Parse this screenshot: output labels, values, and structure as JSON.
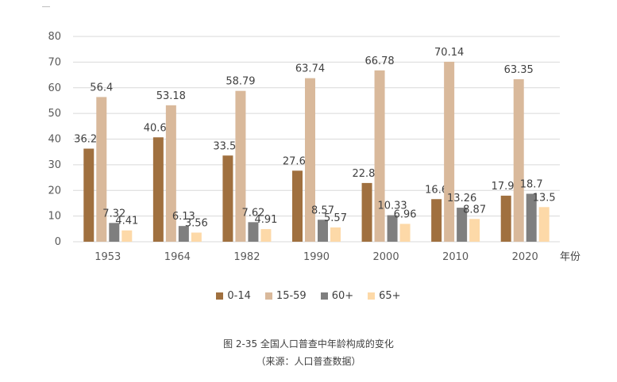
{
  "chart_data": {
    "type": "bar",
    "title": "",
    "xlabel": "年份",
    "ylabel": "",
    "ylim": [
      0,
      80
    ],
    "yticks": [
      0,
      10,
      20,
      30,
      40,
      50,
      60,
      70,
      80
    ],
    "categories": [
      "1953",
      "1964",
      "1982",
      "1990",
      "2000",
      "2010",
      "2020"
    ],
    "series": [
      {
        "name": "0-14",
        "color": "#a0703f",
        "values": [
          36.28,
          40.69,
          33.59,
          27.69,
          22.89,
          16.6,
          17.95
        ]
      },
      {
        "name": "15-59",
        "color": "#d9b99b",
        "values": [
          56.4,
          53.18,
          58.79,
          63.74,
          66.78,
          70.14,
          63.35
        ]
      },
      {
        "name": "60+",
        "color": "#7f7f7f",
        "values": [
          7.32,
          6.13,
          7.62,
          8.57,
          10.33,
          13.26,
          18.7
        ]
      },
      {
        "name": "65+",
        "color": "#fdd9a8",
        "values": [
          4.41,
          3.56,
          4.91,
          5.57,
          6.96,
          8.87,
          13.5
        ]
      }
    ],
    "legend_position": "bottom",
    "grid": true
  },
  "caption": {
    "line1": "图 2-35 全国人口普查中年龄构成的变化",
    "line2": "（来源：人口普查数据）"
  }
}
